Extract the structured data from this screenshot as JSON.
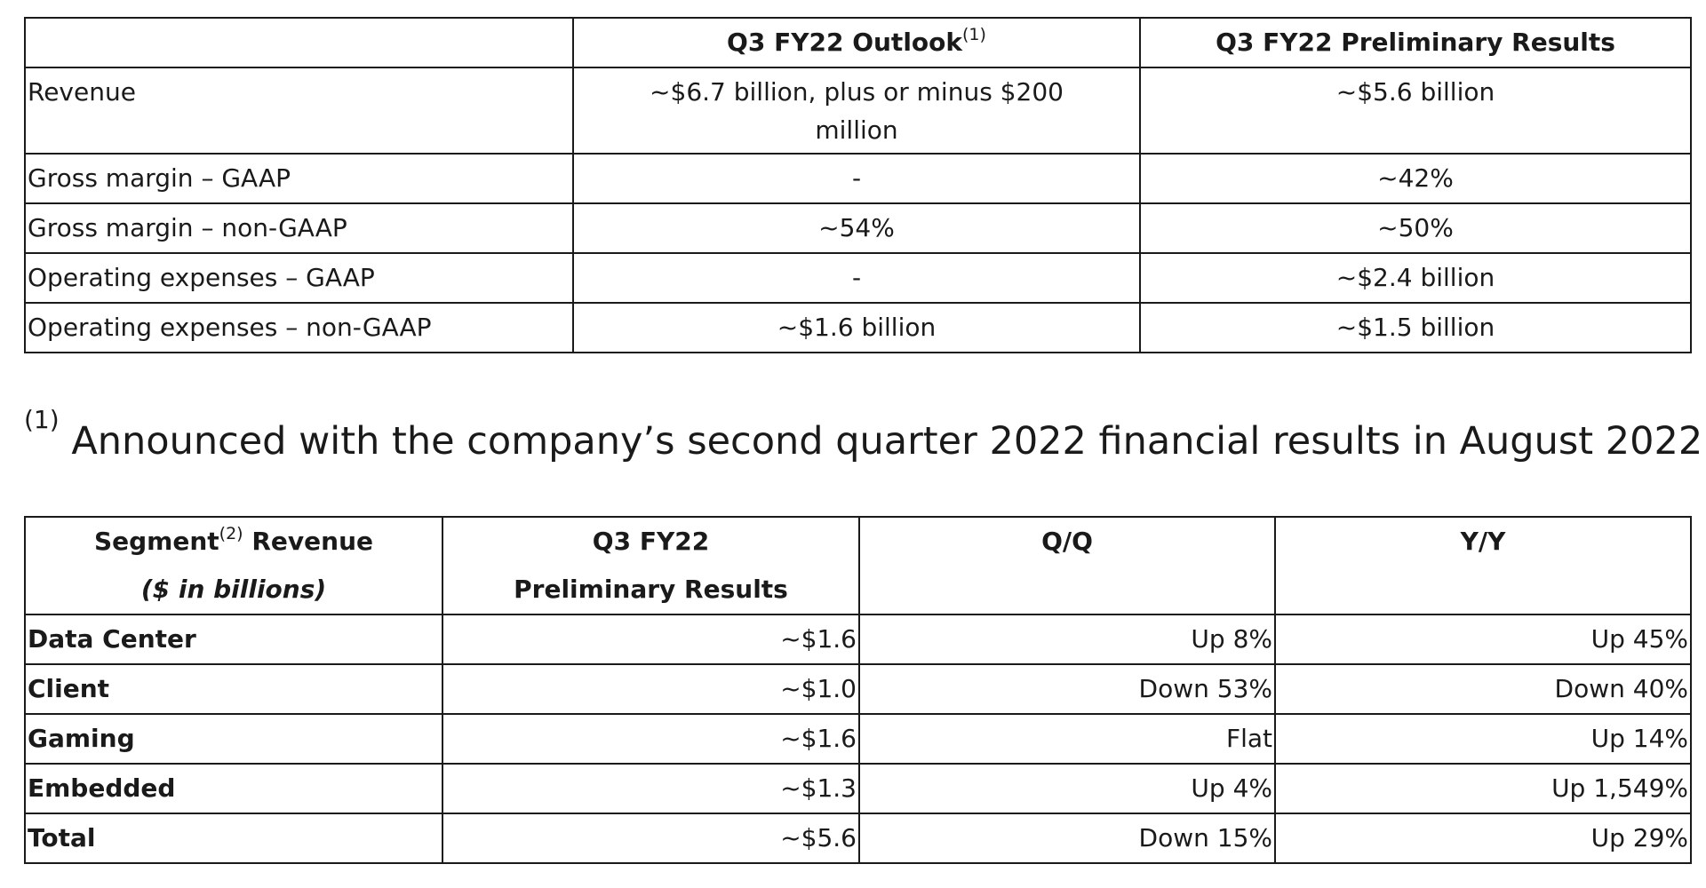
{
  "outlook_table": {
    "headers": {
      "col0": "",
      "col1": "Q3 FY22 Outlook",
      "col1_sup": "(1)",
      "col2": "Q3 FY22 Preliminary Results"
    },
    "rows": [
      {
        "label": "Revenue",
        "outlook": "~$6.7 billion, plus or minus $200 million",
        "results": "~$5.6 billion"
      },
      {
        "label": "Gross margin – GAAP",
        "outlook": "-",
        "results": "~42%"
      },
      {
        "label": "Gross margin – non-GAAP",
        "outlook": "~54%",
        "results": "~50%"
      },
      {
        "label": "Operating expenses – GAAP",
        "outlook": "-",
        "results": "~$2.4 billion"
      },
      {
        "label": "Operating expenses – non-GAAP",
        "outlook": "~$1.6 billion",
        "results": "~$1.5 billion"
      }
    ]
  },
  "footnote": {
    "marker": "(1)",
    "text": "Announced with the company’s second quarter 2022 financial results in August 2022."
  },
  "segment_table": {
    "headers": {
      "col0_line1": "Segment",
      "col0_sup": "(2)",
      "col0_line1_suffix": " Revenue",
      "col0_line2": "($ in billions)",
      "col1_line1": "Q3 FY22",
      "col1_line2": "Preliminary Results",
      "col2": "Q/Q",
      "col3": "Y/Y"
    },
    "rows": [
      {
        "segment": "Data Center",
        "results": "~$1.6",
        "qq": "Up 8%",
        "yy": "Up 45%"
      },
      {
        "segment": "Client",
        "results": "~$1.0",
        "qq": "Down 53%",
        "yy": "Down 40%"
      },
      {
        "segment": "Gaming",
        "results": "~$1.6",
        "qq": "Flat",
        "yy": "Up 14%"
      },
      {
        "segment": "Embedded",
        "results": "~$1.3",
        "qq": "Up 4%",
        "yy": "Up 1,549%"
      },
      {
        "segment": "Total",
        "results": "~$5.6",
        "qq": "Down 15%",
        "yy": "Up 29%"
      }
    ]
  }
}
